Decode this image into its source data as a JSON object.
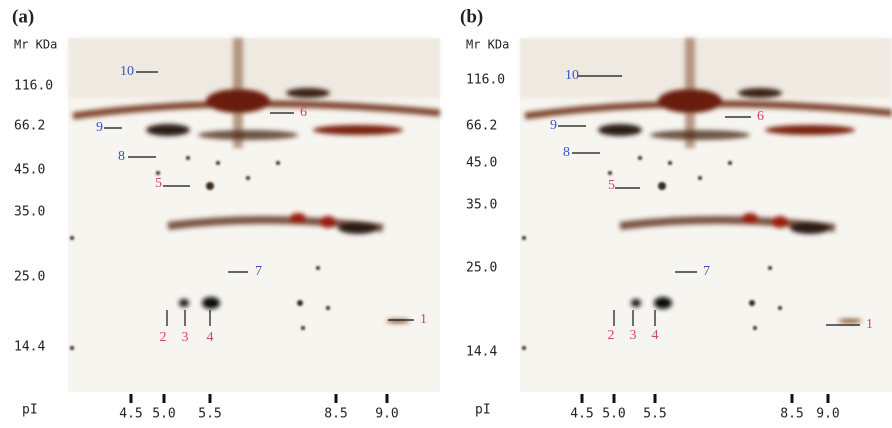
{
  "panels": [
    {
      "label": "(a)",
      "axis_title": "Mr KDa",
      "mr_labels": [
        "116.0",
        "66.2",
        "45.0",
        "35.0",
        "25.0",
        "14.4"
      ],
      "pi_title": "pI",
      "pi_labels": [
        "4.5",
        "5.0",
        "5.5",
        "8.5",
        "9.0"
      ],
      "spots": [
        "10",
        "9",
        "8",
        "6",
        "5",
        "7",
        "2",
        "3",
        "4",
        "1"
      ]
    },
    {
      "label": "(b)",
      "axis_title": "Mr KDa",
      "mr_labels": [
        "116.0",
        "66.2",
        "45.0",
        "35.0",
        "25.0",
        "14.4"
      ],
      "pi_title": "pI",
      "pi_labels": [
        "4.5",
        "5.0",
        "5.5",
        "8.5",
        "9.0"
      ],
      "spots": [
        "10",
        "9",
        "8",
        "6",
        "5",
        "7",
        "2",
        "3",
        "4",
        "1"
      ]
    }
  ]
}
